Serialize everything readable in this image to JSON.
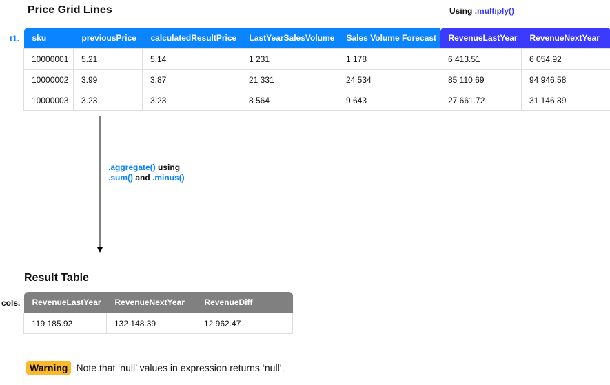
{
  "top": {
    "title": "Price Grid Lines",
    "using_label": "Using",
    "using_method": ".multiply()",
    "table_label": "t1.",
    "headers": [
      "sku",
      "previousPrice",
      "calculatedResultPrice",
      "LastYearSalesVolume",
      "Sales Volume Forecast",
      "RevenueLastYear",
      "RevenueNextYear"
    ],
    "rows": [
      [
        "10000001",
        "5.21",
        "5.14",
        "1 231",
        "1 178",
        "6 413.51",
        "6 054.92"
      ],
      [
        "10000002",
        "3.99",
        "3.87",
        "21 331",
        "24 534",
        "85 110.69",
        "94 946.58"
      ],
      [
        "10000003",
        "3.23",
        "3.23",
        "8 564",
        "9 643",
        "27 661.72",
        "31 146.89"
      ]
    ]
  },
  "arrow": {
    "line1_code": ".aggregate()",
    "line1_text": " using",
    "line2_code1": ".sum()",
    "line2_text": " and ",
    "line2_code2": ".minus()"
  },
  "result": {
    "title": "Result Table",
    "table_label": "cols.",
    "headers": [
      "RevenueLastYear",
      "RevenueNextYear",
      "RevenueDiff"
    ],
    "rows": [
      [
        "119 185.92",
        "132 148.39",
        "12 962.47"
      ]
    ]
  },
  "warning": {
    "badge": "Warning",
    "text": "Note that ‘null’ values in expression returns ‘null’."
  },
  "colors": {
    "header_blue": "#0a84ff",
    "header_purple": "#3b3bff",
    "header_gray": "#808080",
    "warning": "#fbb829"
  }
}
